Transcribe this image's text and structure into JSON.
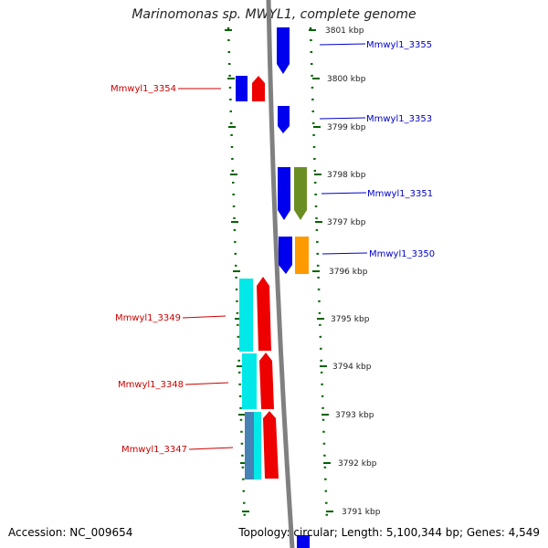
{
  "title": "Marinomonas sp. MWYL1, complete genome",
  "accession": "Accession: NC_009654",
  "topology": "Topology: circular; Length: 5,100,344 bp; Genes: 4,549",
  "ticks": [
    {
      "label": "3801 kbp",
      "pos_kbp": 3801
    },
    {
      "label": "3800 kbp",
      "pos_kbp": 3800
    },
    {
      "label": "3799 kbp",
      "pos_kbp": 3799
    },
    {
      "label": "3798 kbp",
      "pos_kbp": 3798
    },
    {
      "label": "3797 kbp",
      "pos_kbp": 3797
    },
    {
      "label": "3796 kbp",
      "pos_kbp": 3796
    },
    {
      "label": "3795 kbp",
      "pos_kbp": 3795
    },
    {
      "label": "3794 kbp",
      "pos_kbp": 3794
    },
    {
      "label": "3793 kbp",
      "pos_kbp": 3793
    },
    {
      "label": "3792 kbp",
      "pos_kbp": 3792
    },
    {
      "label": "3791 kbp",
      "pos_kbp": 3791
    }
  ],
  "genes_right": [
    {
      "label": "Mmwyl1_3355",
      "color": "#0000cc"
    },
    {
      "label": "Mmwyl1_3353",
      "color": "#0000cc"
    },
    {
      "label": "Mmwyl1_3351",
      "color": "#0000cc"
    },
    {
      "label": "Mmwyl1_3350",
      "color": "#0000cc"
    }
  ],
  "genes_left": [
    {
      "label": "Mmwyl1_3354",
      "color": "#cc0000"
    },
    {
      "label": "Mmwyl1_3349",
      "color": "#cc0000"
    },
    {
      "label": "Mmwyl1_3348",
      "color": "#cc0000"
    },
    {
      "label": "Mmwyl1_3347",
      "color": "#cc0000"
    }
  ],
  "colors": {
    "forward_strand": "#0000ee",
    "reverse_strand": "#ee0000",
    "cyan_feature": "#00e8e8",
    "olive_feature": "#6b8e23",
    "orange_feature": "#ff9900",
    "steel_feature": "#4682b4",
    "backbone": "#808080",
    "tick_marks": "#006400"
  }
}
